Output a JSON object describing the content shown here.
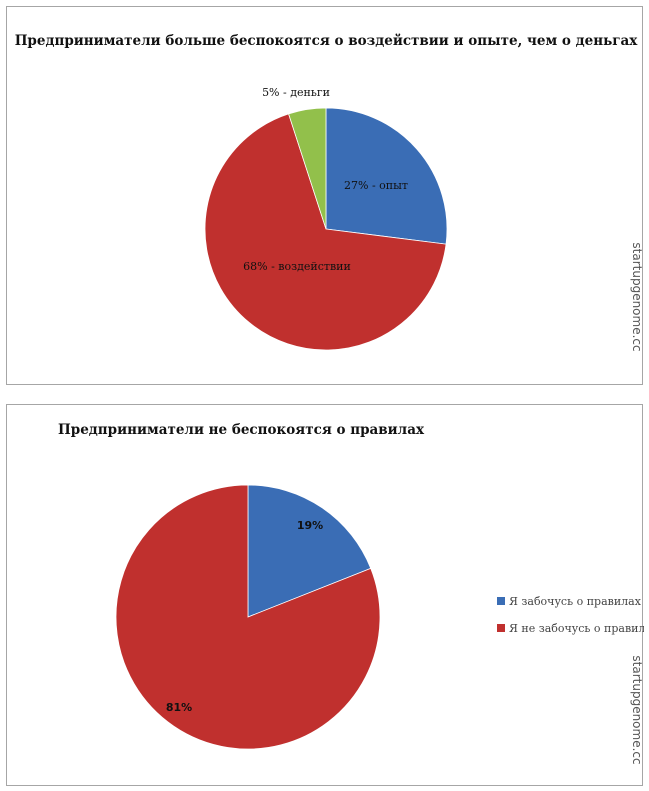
{
  "chart_data": [
    {
      "type": "pie",
      "title": "Предприниматели больше беспокоятся о воздействии и опыте, чем о деньгах",
      "slices": [
        {
          "label": "27% - опыт",
          "value": 27,
          "color": "#3a6db5"
        },
        {
          "label": "68% - воздействии",
          "value": 68,
          "color": "#c0302e"
        },
        {
          "label": "5% - деньги",
          "value": 5,
          "color": "#92c04b"
        }
      ],
      "legend": false,
      "watermark": "startupgenome.cc"
    },
    {
      "type": "pie",
      "title": "Предприниматели не беспокоятся о правилах",
      "slices": [
        {
          "label": "19%",
          "value": 19,
          "color": "#3a6db5",
          "legend_label": "Я забочусь о правилах"
        },
        {
          "label": "81%",
          "value": 81,
          "color": "#c0302e",
          "legend_label": "Я не забочусь о правилах"
        }
      ],
      "legend": true,
      "legend_position": "right",
      "watermark": "startupgenome.cc"
    }
  ]
}
